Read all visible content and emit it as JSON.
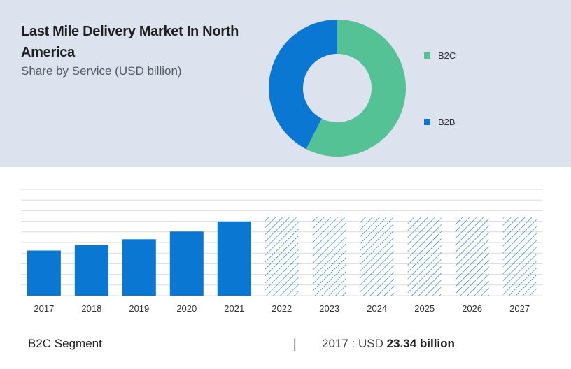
{
  "header": {
    "title": "Last Mile Delivery Market In North America",
    "subtitle": "Share by Service  (USD billion)"
  },
  "colors": {
    "b2c": "#55c296",
    "b2b": "#0a78d2",
    "panel_bg": "#dde3ee",
    "hatch": "#0a78d2"
  },
  "chart_data": [
    {
      "type": "pie",
      "variant": "donut",
      "title": "",
      "categories": [
        "B2C",
        "B2B"
      ],
      "values": [
        57.5,
        42.5
      ],
      "legend_placement": "right"
    },
    {
      "type": "bar",
      "title": "",
      "categories": [
        "2017",
        "2018",
        "2019",
        "2020",
        "2021",
        "2022",
        "2023",
        "2024",
        "2025",
        "2026",
        "2027"
      ],
      "series": [
        {
          "values": [
            23.34,
            26.1,
            29.2,
            33.2,
            38.4,
            40.5,
            40.5,
            40.5,
            40.5,
            40.5,
            40.5
          ],
          "forecast_from": "2022"
        }
      ],
      "ylim": [
        0,
        55
      ],
      "grid": true,
      "xlabel": "",
      "ylabel": ""
    }
  ],
  "footer": {
    "segment": "B2C Segment",
    "divider": "|",
    "year_label": "2017 : USD ",
    "value_label": "23.34 billion"
  }
}
